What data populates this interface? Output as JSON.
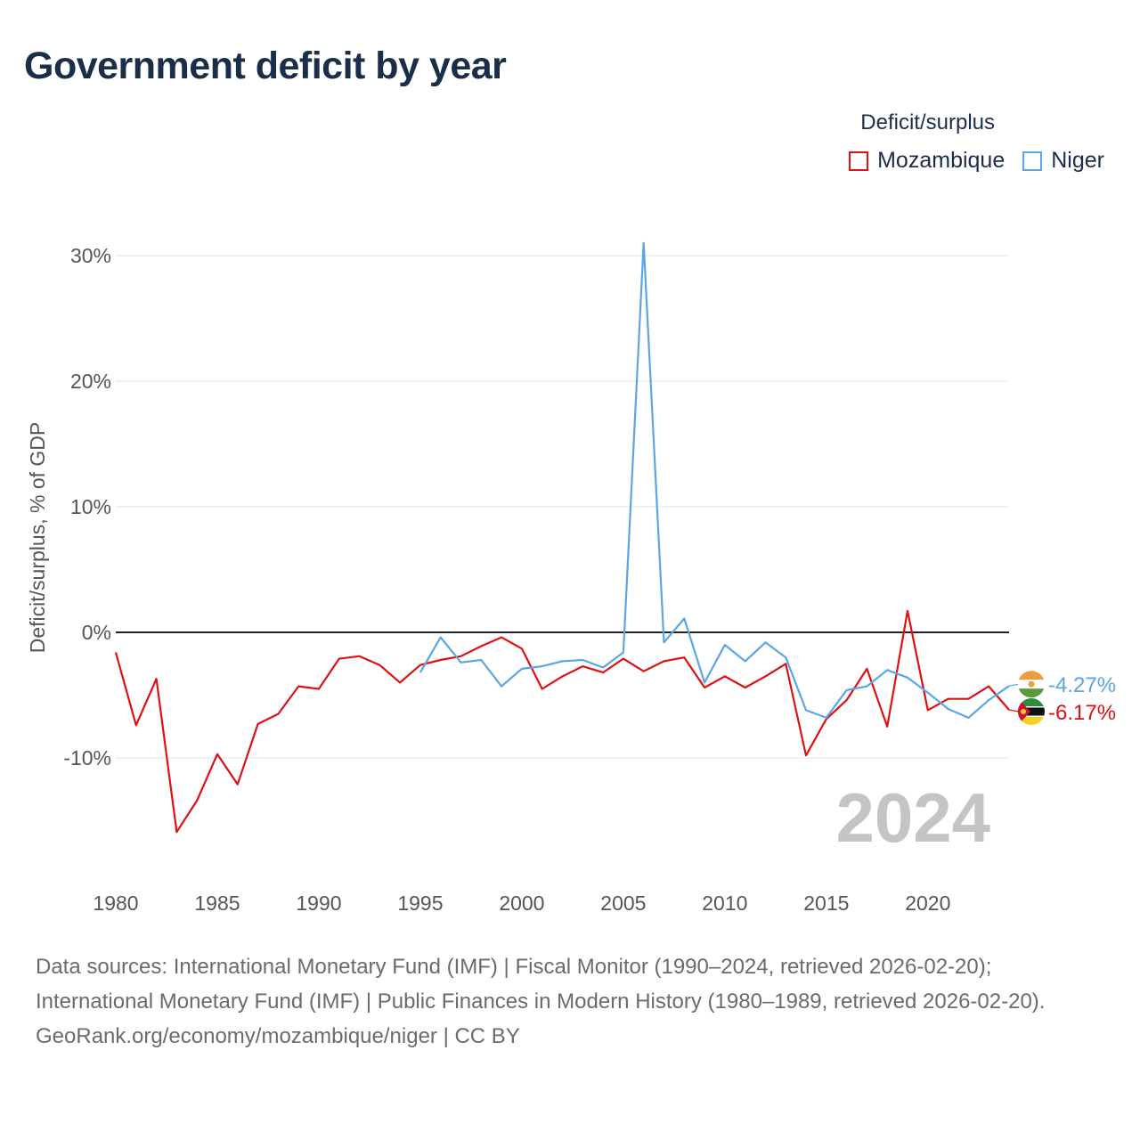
{
  "title": "Government deficit by year",
  "legend": {
    "title": "Deficit/surplus",
    "items": [
      {
        "label": "Mozambique",
        "color": "#e01010"
      },
      {
        "label": "Niger",
        "color": "#5aa5e6"
      }
    ]
  },
  "footer": {
    "sources": "Data sources: International Monetary Fund (IMF) | Fiscal Monitor (1990–2024, retrieved 2026-02-20); International Monetary Fund (IMF) | Public Finances in Modern History (1980–1989, retrieved 2026-02-20).",
    "credit": "GeoRank.org/economy/mozambique/niger | CC BY"
  },
  "chart_data": {
    "type": "line",
    "title": "Government deficit by year",
    "xlabel": "",
    "ylabel": "Deficit/surplus, % of GDP",
    "xlim": [
      1980,
      2024
    ],
    "ylim": [
      -19,
      32
    ],
    "x_ticks": [
      1980,
      1985,
      1990,
      1995,
      2000,
      2005,
      2010,
      2015,
      2020
    ],
    "y_ticks": [
      {
        "value": 30,
        "label": "30%"
      },
      {
        "value": 20,
        "label": "20%"
      },
      {
        "value": 10,
        "label": "10%"
      },
      {
        "value": 0,
        "label": "0%"
      },
      {
        "value": -10,
        "label": "-10%"
      }
    ],
    "year_label": "2024",
    "series": [
      {
        "name": "Mozambique",
        "color": "#e01010",
        "end_label": "-6.17%",
        "points": [
          [
            1980,
            -1.6
          ],
          [
            1981,
            -7.4
          ],
          [
            1982,
            -3.7
          ],
          [
            1983,
            -15.9
          ],
          [
            1984,
            -13.4
          ],
          [
            1985,
            -9.7
          ],
          [
            1986,
            -12.1
          ],
          [
            1987,
            -7.3
          ],
          [
            1988,
            -6.5
          ],
          [
            1989,
            -4.3
          ],
          [
            1990,
            -4.5
          ],
          [
            1991,
            -2.1
          ],
          [
            1992,
            -1.9
          ],
          [
            1993,
            -2.6
          ],
          [
            1994,
            -4.0
          ],
          [
            1995,
            -2.6
          ],
          [
            1996,
            -2.2
          ],
          [
            1997,
            -1.9
          ],
          [
            1998,
            -1.1
          ],
          [
            1999,
            -0.4
          ],
          [
            2000,
            -1.3
          ],
          [
            2001,
            -4.5
          ],
          [
            2002,
            -3.5
          ],
          [
            2003,
            -2.7
          ],
          [
            2004,
            -3.2
          ],
          [
            2005,
            -2.1
          ],
          [
            2006,
            -3.1
          ],
          [
            2007,
            -2.3
          ],
          [
            2008,
            -2.0
          ],
          [
            2009,
            -4.4
          ],
          [
            2010,
            -3.5
          ],
          [
            2011,
            -4.4
          ],
          [
            2012,
            -3.5
          ],
          [
            2013,
            -2.5
          ],
          [
            2014,
            -9.8
          ],
          [
            2015,
            -6.9
          ],
          [
            2016,
            -5.4
          ],
          [
            2017,
            -2.9
          ],
          [
            2018,
            -7.5
          ],
          [
            2019,
            1.7
          ],
          [
            2020,
            -6.2
          ],
          [
            2021,
            -5.3
          ],
          [
            2022,
            -5.3
          ],
          [
            2023,
            -4.3
          ],
          [
            2024,
            -6.17
          ]
        ]
      },
      {
        "name": "Niger",
        "color": "#5aa5e6",
        "end_label": "-4.27%",
        "points": [
          [
            1995,
            -3.2
          ],
          [
            1996,
            -0.4
          ],
          [
            1997,
            -2.4
          ],
          [
            1998,
            -2.2
          ],
          [
            1999,
            -4.3
          ],
          [
            2000,
            -2.9
          ],
          [
            2001,
            -2.7
          ],
          [
            2002,
            -2.3
          ],
          [
            2003,
            -2.2
          ],
          [
            2004,
            -2.8
          ],
          [
            2005,
            -1.6
          ],
          [
            2006,
            31.0
          ],
          [
            2007,
            -0.8
          ],
          [
            2008,
            1.1
          ],
          [
            2009,
            -4.0
          ],
          [
            2010,
            -1.0
          ],
          [
            2011,
            -2.3
          ],
          [
            2012,
            -0.8
          ],
          [
            2013,
            -2.0
          ],
          [
            2014,
            -6.2
          ],
          [
            2015,
            -6.8
          ],
          [
            2016,
            -4.6
          ],
          [
            2017,
            -4.3
          ],
          [
            2018,
            -3.0
          ],
          [
            2019,
            -3.6
          ],
          [
            2020,
            -4.8
          ],
          [
            2021,
            -6.1
          ],
          [
            2022,
            -6.8
          ],
          [
            2023,
            -5.4
          ],
          [
            2024,
            -4.27
          ]
        ]
      }
    ]
  }
}
